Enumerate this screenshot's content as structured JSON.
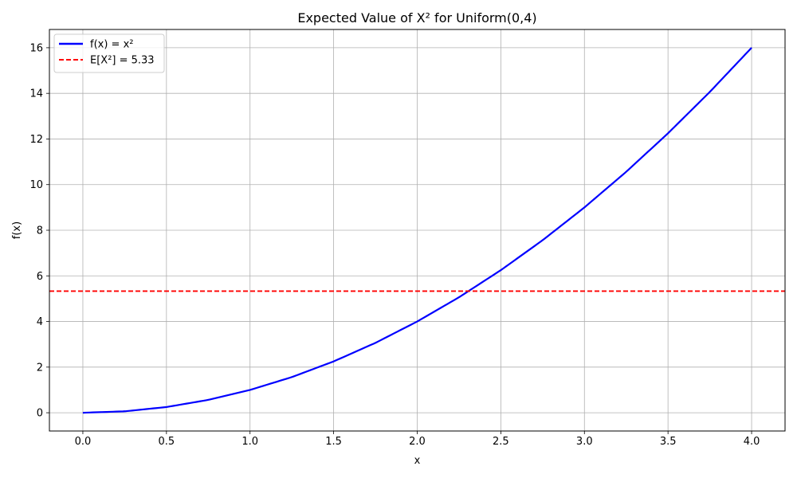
{
  "chart_data": {
    "type": "line",
    "title": "Expected Value of X² for Uniform(0,4)",
    "xlabel": "x",
    "ylabel": "f(x)",
    "xlim": [
      -0.2,
      4.2
    ],
    "ylim": [
      -0.8,
      16.8
    ],
    "x_ticks": [
      0.0,
      0.5,
      1.0,
      1.5,
      2.0,
      2.5,
      3.0,
      3.5,
      4.0
    ],
    "x_tick_labels": [
      "0.0",
      "0.5",
      "1.0",
      "1.5",
      "2.0",
      "2.5",
      "3.0",
      "3.5",
      "4.0"
    ],
    "y_ticks": [
      0,
      2,
      4,
      6,
      8,
      10,
      12,
      14,
      16
    ],
    "y_tick_labels": [
      "0",
      "2",
      "4",
      "6",
      "8",
      "10",
      "12",
      "14",
      "16"
    ],
    "grid": true,
    "legend_position": "top-left",
    "series": [
      {
        "name": "f(x) = x²",
        "color": "#0000ff",
        "style": "solid",
        "x": [
          0.0,
          0.25,
          0.5,
          0.75,
          1.0,
          1.25,
          1.5,
          1.75,
          2.0,
          2.25,
          2.5,
          2.75,
          3.0,
          3.25,
          3.5,
          3.75,
          4.0
        ],
        "y": [
          0.0,
          0.0625,
          0.25,
          0.5625,
          1.0,
          1.5625,
          2.25,
          3.0625,
          4.0,
          5.0625,
          6.25,
          7.5625,
          9.0,
          10.5625,
          12.25,
          14.0625,
          16.0
        ]
      }
    ],
    "hlines": [
      {
        "name": "E[X²] = 5.33",
        "y": 5.33,
        "color": "#ff0000",
        "style": "dashed"
      }
    ]
  }
}
